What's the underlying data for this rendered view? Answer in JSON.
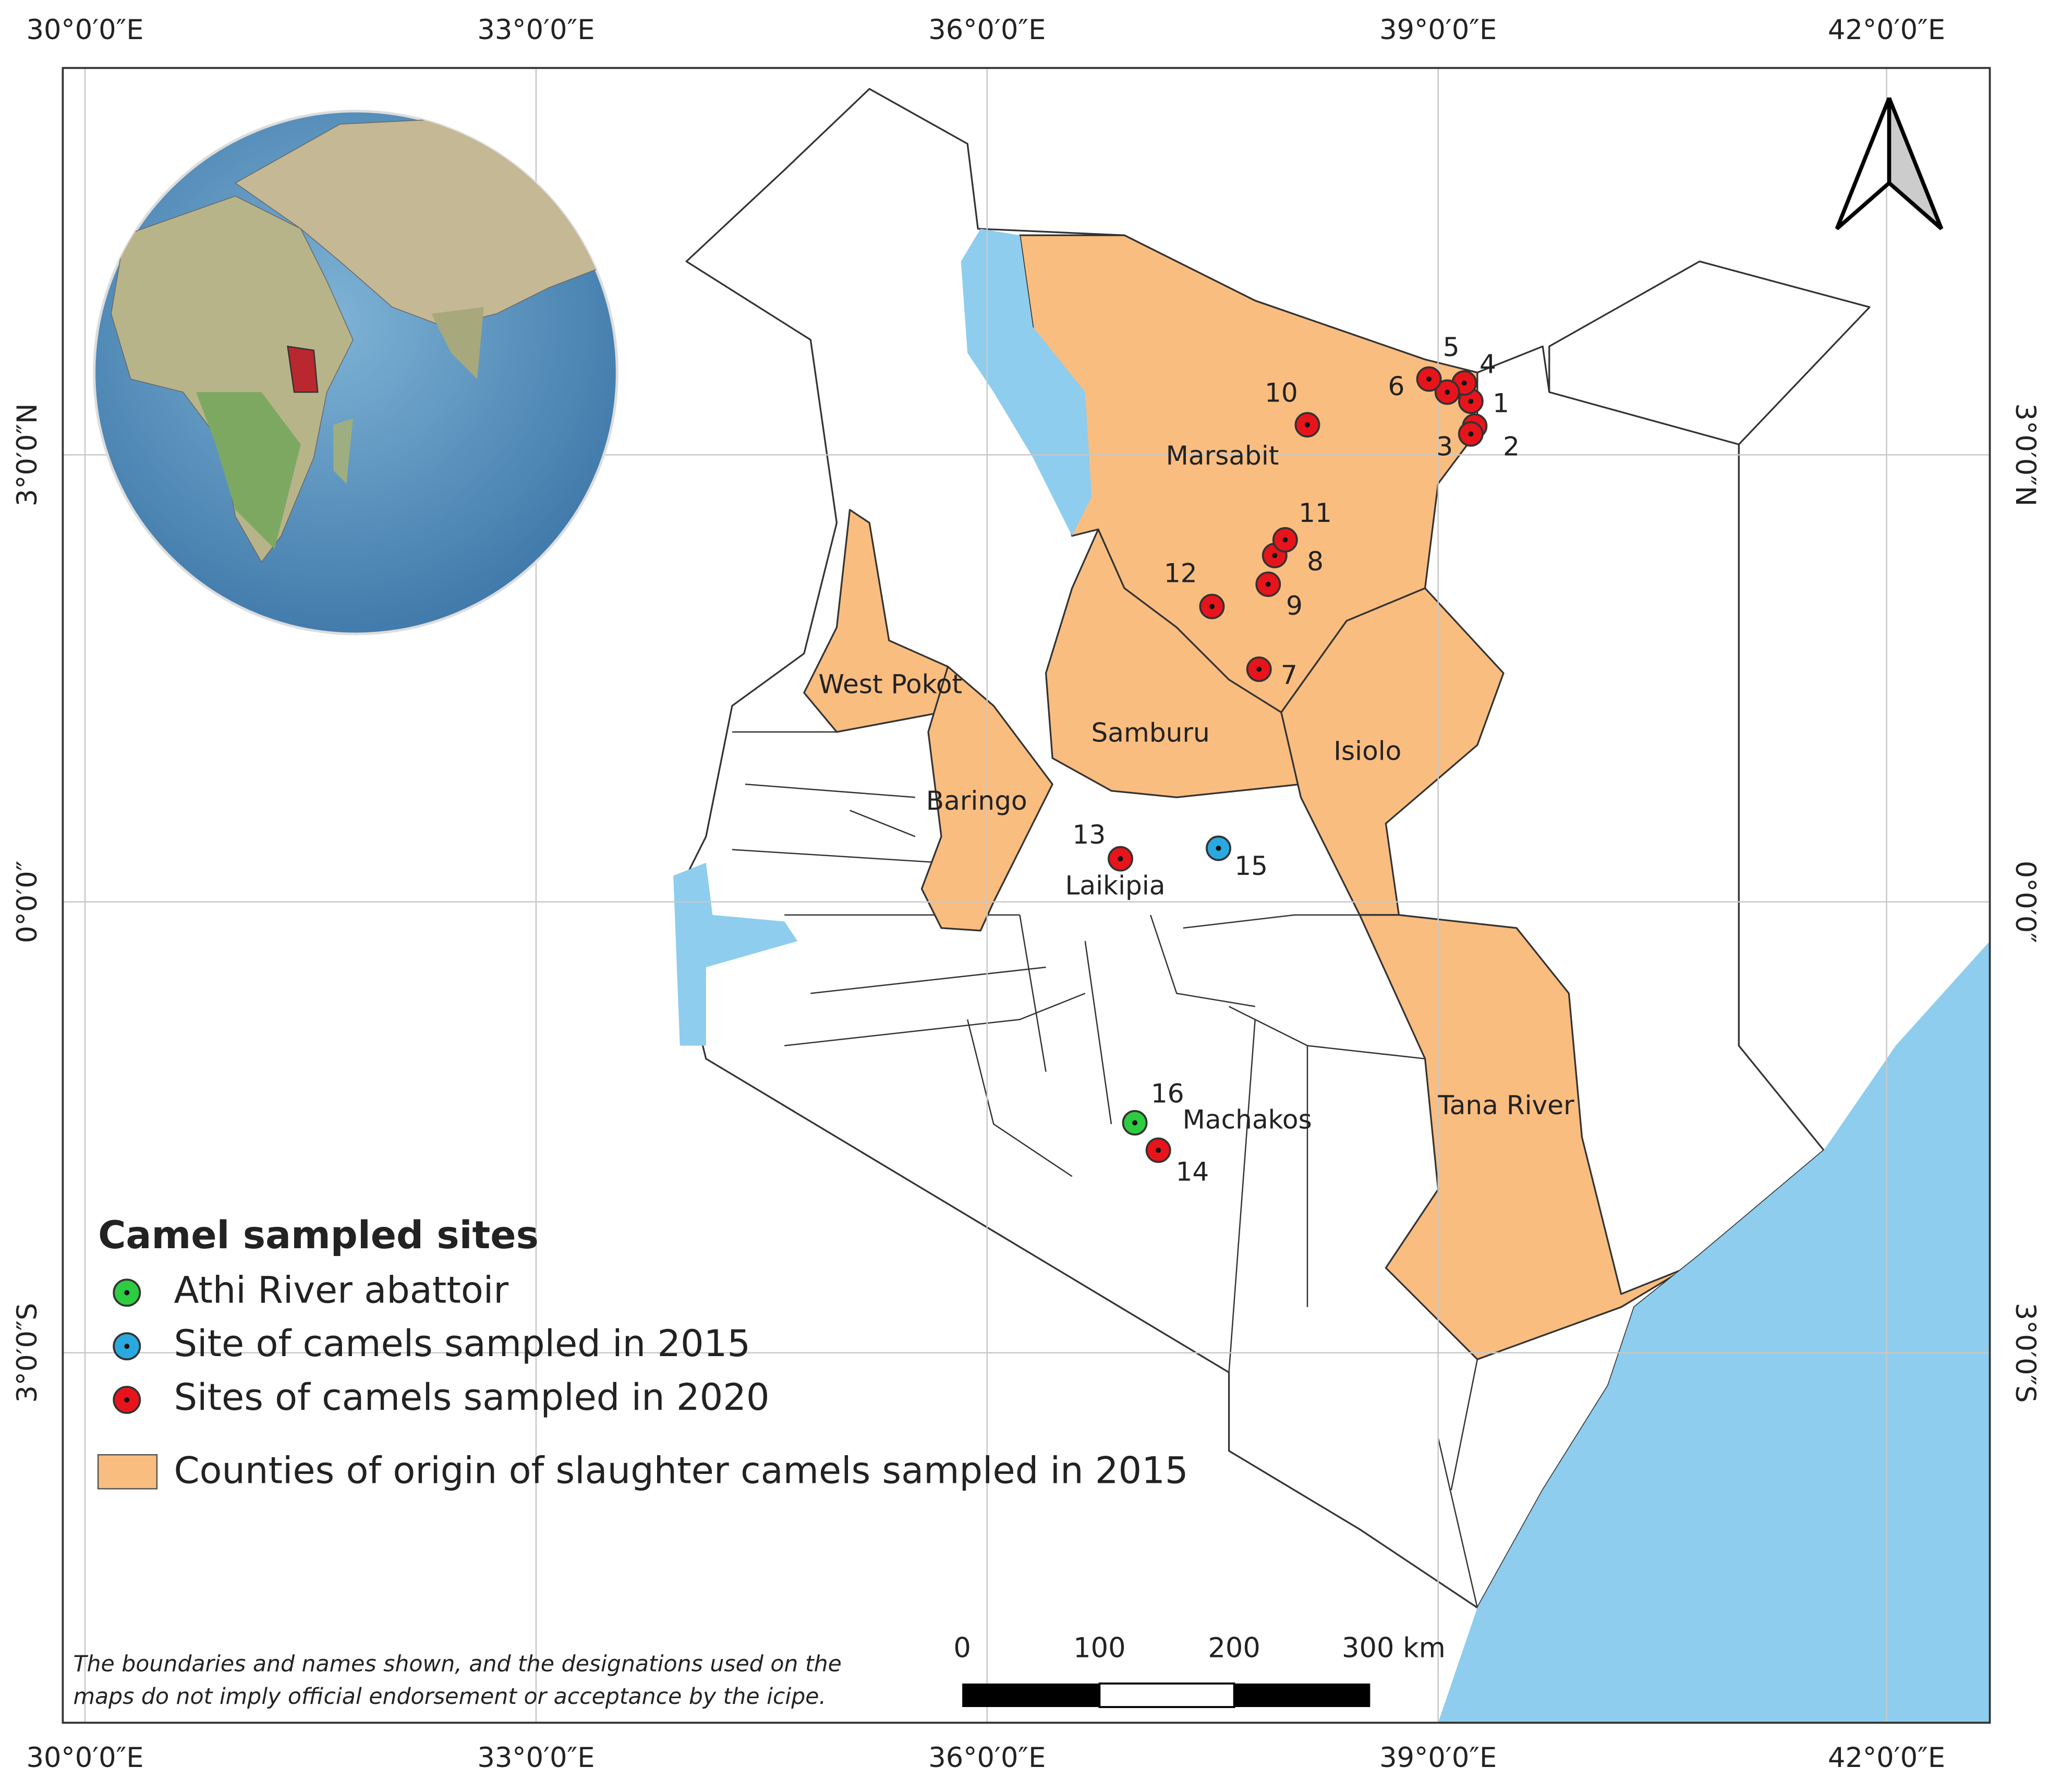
{
  "map": {
    "graticule": {
      "top": [
        "30°0′0″E",
        "33°0′0″E",
        "36°0′0″E",
        "39°0′0″E",
        "42°0′0″E"
      ],
      "bottom": [
        "30°0′0″E",
        "33°0′0″E",
        "36°0′0″E",
        "39°0′0″E",
        "42°0′0″E"
      ],
      "left": [
        "3°0′0″N",
        "0°0′0″",
        "3°0′0″S"
      ],
      "right": [
        "3°0′0″N",
        "0°0′0″",
        "3°0′0″S"
      ]
    },
    "counties": [
      "Marsabit",
      "West Pokot",
      "Samburu",
      "Isiolo",
      "Baringo",
      "Laikipia",
      "Machakos",
      "Tana River"
    ],
    "legend": {
      "title": "Camel sampled sites",
      "groups": [
        {
          "label": "Athi River abattoir",
          "color": "#2ecc40",
          "sites": [
            "16"
          ]
        },
        {
          "label": "Site of camels sampled in 2015",
          "color": "#29a9e0",
          "sites": [
            "15"
          ]
        },
        {
          "label": "Sites of camels sampled in 2020",
          "color": "#e8141c",
          "sites": [
            "1",
            "2",
            "3",
            "4",
            "5",
            "6",
            "7",
            "8",
            "9",
            "10",
            "11",
            "12",
            "13",
            "14"
          ]
        }
      ],
      "area": {
        "label": "Counties of origin of slaughter camels sampled in 2015",
        "color": "#f9bd80"
      }
    },
    "scale_bar": [
      "0",
      "100",
      "200",
      "300 km"
    ],
    "disclaimer": [
      "The boundaries and names shown, and the designations used on the",
      "maps do not imply official endorsement or acceptance by the icipe."
    ]
  }
}
